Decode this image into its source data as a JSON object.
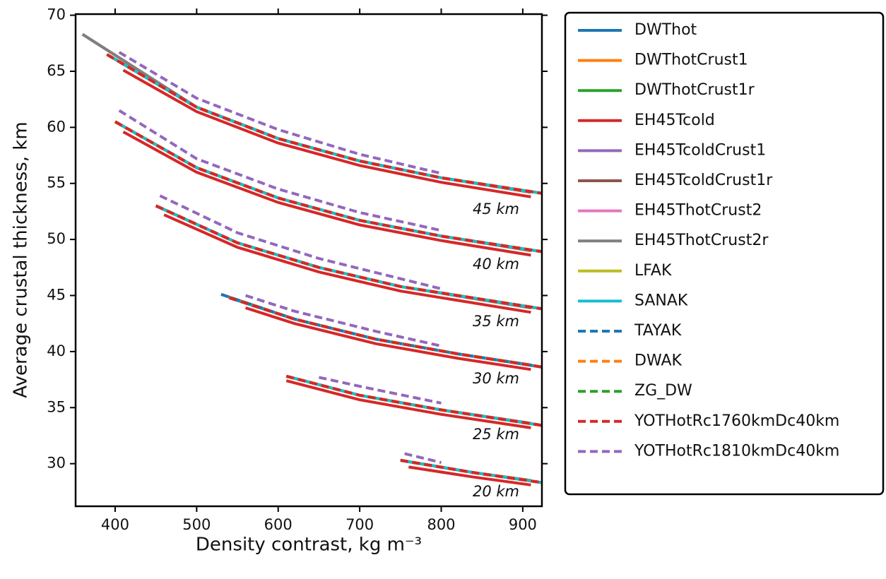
{
  "chart_data": {
    "type": "line",
    "xlabel": "Density contrast, kg m⁻³",
    "ylabel": "Average crustal thickness, km",
    "xlim": [
      351.5,
      923.5
    ],
    "ylim": [
      26.2,
      70.1
    ],
    "xticks": [
      400,
      500,
      600,
      700,
      800,
      900
    ],
    "yticks": [
      30,
      35,
      40,
      45,
      50,
      55,
      60,
      65,
      70
    ],
    "annotations": [
      "45 km",
      "40 km",
      "35 km",
      "30 km",
      "25 km",
      "20 km"
    ],
    "series": [
      {
        "name": "DWThot",
        "color": "#1f77b4",
        "style": "solid",
        "x": [
          390,
          500,
          600,
          700,
          800,
          925,
          null,
          400,
          500,
          600,
          700,
          800,
          925,
          null,
          450,
          550,
          650,
          750,
          925,
          null,
          540,
          620,
          720,
          820,
          925,
          null,
          610,
          700,
          800,
          925,
          null,
          750,
          840,
          925
        ],
        "values": [
          66.5,
          61.8,
          59,
          57,
          55.5,
          54.1,
          null,
          60.5,
          56.4,
          53.7,
          51.7,
          50.3,
          48.9,
          null,
          53,
          49.7,
          47.5,
          45.8,
          43.8,
          null,
          44.8,
          42.9,
          41.1,
          39.8,
          38.6,
          null,
          37.8,
          36.1,
          34.8,
          33.4,
          null,
          30.3,
          29.2,
          28.3
        ]
      },
      {
        "name": "DWThotCrust1",
        "color": "#ff7f0e",
        "style": "solid",
        "x": [
          390,
          500,
          600,
          700,
          800,
          925,
          null,
          400,
          500,
          600,
          700,
          800,
          925,
          null,
          450,
          550,
          650,
          750,
          925,
          null,
          540,
          620,
          720,
          820,
          925,
          null,
          610,
          700,
          800,
          925,
          null,
          750,
          840,
          925
        ],
        "values": [
          66.5,
          61.8,
          59,
          57,
          55.5,
          54.1,
          null,
          60.5,
          56.4,
          53.7,
          51.7,
          50.3,
          48.9,
          null,
          53,
          49.7,
          47.5,
          45.8,
          43.8,
          null,
          44.8,
          42.9,
          41.1,
          39.8,
          38.6,
          null,
          37.8,
          36.1,
          34.8,
          33.4,
          null,
          30.3,
          29.2,
          28.3
        ]
      },
      {
        "name": "DWThotCrust1r",
        "color": "#2ca02c",
        "style": "solid",
        "x": [
          390,
          500,
          600,
          700,
          800,
          925,
          null,
          400,
          500,
          600,
          700,
          800,
          925,
          null,
          450,
          550,
          650,
          750,
          925,
          null,
          540,
          620,
          720,
          820,
          925,
          null,
          610,
          700,
          800,
          925,
          null,
          750,
          840,
          925
        ],
        "values": [
          66.5,
          61.8,
          59,
          57,
          55.5,
          54.1,
          null,
          60.5,
          56.4,
          53.7,
          51.7,
          50.3,
          48.9,
          null,
          53,
          49.7,
          47.5,
          45.8,
          43.8,
          null,
          44.8,
          42.9,
          41.1,
          39.8,
          38.6,
          null,
          37.8,
          36.1,
          34.8,
          33.4,
          null,
          30.3,
          29.2,
          28.3
        ]
      },
      {
        "name": "EH45Tcold",
        "color": "#d62728",
        "style": "solid",
        "x": [
          410,
          500,
          600,
          700,
          800,
          910,
          null,
          410,
          500,
          600,
          700,
          800,
          910,
          null,
          460,
          550,
          650,
          750,
          910,
          null,
          560,
          620,
          720,
          820,
          910,
          null,
          610,
          700,
          800,
          910,
          null,
          760,
          840,
          910
        ],
        "values": [
          65.1,
          61.4,
          58.6,
          56.6,
          55.1,
          53.8,
          null,
          59.6,
          56,
          53.3,
          51.3,
          49.9,
          48.6,
          null,
          52.2,
          49.3,
          47.1,
          45.4,
          43.5,
          null,
          43.9,
          42.5,
          40.7,
          39.4,
          38.4,
          null,
          37.4,
          35.7,
          34.4,
          33.2,
          null,
          29.7,
          28.8,
          28.1
        ]
      },
      {
        "name": "EH45TcoldCrust1",
        "color": "#9467bd",
        "style": "solid",
        "x": [
          390,
          500,
          600,
          700,
          800,
          925,
          null,
          400,
          500,
          600,
          700,
          800,
          925,
          null,
          450,
          550,
          650,
          750,
          925,
          null,
          540,
          620,
          720,
          820,
          925,
          null,
          610,
          700,
          800,
          925,
          null,
          750,
          840,
          925
        ],
        "values": [
          66.5,
          61.8,
          59,
          57,
          55.5,
          54.1,
          null,
          60.5,
          56.4,
          53.7,
          51.7,
          50.3,
          48.9,
          null,
          53,
          49.7,
          47.5,
          45.8,
          43.8,
          null,
          44.8,
          42.9,
          41.1,
          39.8,
          38.6,
          null,
          37.8,
          36.1,
          34.8,
          33.4,
          null,
          30.3,
          29.2,
          28.3
        ]
      },
      {
        "name": "EH45TcoldCrust1r",
        "color": "#8c564b",
        "style": "solid",
        "x": [
          360,
          500,
          600,
          700,
          800,
          910,
          null,
          400,
          500,
          600,
          700,
          800,
          910,
          null,
          450,
          550,
          650,
          750,
          910,
          null,
          530,
          620,
          720,
          820,
          910,
          null,
          610,
          700,
          800,
          910,
          null,
          750,
          840,
          910
        ],
        "values": [
          68.3,
          61.8,
          59,
          57,
          55.5,
          54.2,
          null,
          60.5,
          56.4,
          53.7,
          51.7,
          50.3,
          49,
          null,
          53,
          49.7,
          47.5,
          45.8,
          43.9,
          null,
          45.1,
          42.9,
          41.1,
          39.8,
          38.8,
          null,
          37.8,
          36.1,
          34.8,
          33.6,
          null,
          30.3,
          29.2,
          28.5
        ]
      },
      {
        "name": "EH45ThotCrust2",
        "color": "#e377c2",
        "style": "solid",
        "x": [
          390,
          500,
          600,
          700,
          800,
          925,
          null,
          400,
          500,
          600,
          700,
          800,
          925,
          null,
          450,
          550,
          650,
          750,
          925,
          null,
          540,
          620,
          720,
          820,
          925,
          null,
          610,
          700,
          800,
          925,
          null,
          750,
          840,
          925
        ],
        "values": [
          66.5,
          61.8,
          59,
          57,
          55.5,
          54.1,
          null,
          60.5,
          56.4,
          53.7,
          51.7,
          50.3,
          48.9,
          null,
          53,
          49.7,
          47.5,
          45.8,
          43.8,
          null,
          44.8,
          42.9,
          41.1,
          39.8,
          38.6,
          null,
          37.8,
          36.1,
          34.8,
          33.4,
          null,
          30.3,
          29.2,
          28.3
        ]
      },
      {
        "name": "EH45ThotCrust2r",
        "color": "#7f7f7f",
        "style": "solid",
        "x": [
          360,
          500,
          600,
          700,
          800,
          910,
          null,
          400,
          500,
          600,
          700,
          800,
          910,
          null,
          450,
          550,
          650,
          750,
          910,
          null,
          530,
          620,
          720,
          820,
          910,
          null,
          610,
          700,
          800,
          910,
          null,
          750,
          840,
          910
        ],
        "values": [
          68.3,
          61.8,
          59,
          57,
          55.5,
          54.2,
          null,
          60.5,
          56.4,
          53.7,
          51.7,
          50.3,
          49,
          null,
          53,
          49.7,
          47.5,
          45.8,
          43.9,
          null,
          45.1,
          42.9,
          41.1,
          39.8,
          38.8,
          null,
          37.8,
          36.1,
          34.8,
          33.6,
          null,
          30.3,
          29.2,
          28.5
        ]
      },
      {
        "name": "LFAK",
        "color": "#bcbd22",
        "style": "solid",
        "x": [
          390,
          500,
          600,
          700,
          800,
          925,
          null,
          400,
          500,
          600,
          700,
          800,
          925,
          null,
          450,
          550,
          650,
          750,
          925,
          null,
          540,
          620,
          720,
          820,
          925,
          null,
          610,
          700,
          800,
          925,
          null,
          750,
          840,
          925
        ],
        "values": [
          66.5,
          61.8,
          59,
          57,
          55.5,
          54.1,
          null,
          60.5,
          56.4,
          53.7,
          51.7,
          50.3,
          48.9,
          null,
          53,
          49.7,
          47.5,
          45.8,
          43.8,
          null,
          44.8,
          42.9,
          41.1,
          39.8,
          38.6,
          null,
          37.8,
          36.1,
          34.8,
          33.4,
          null,
          30.3,
          29.2,
          28.3
        ]
      },
      {
        "name": "SANAK",
        "color": "#17becf",
        "style": "solid",
        "x": [
          390,
          500,
          600,
          700,
          800,
          925,
          null,
          400,
          500,
          600,
          700,
          800,
          925,
          null,
          450,
          550,
          650,
          750,
          925,
          null,
          540,
          620,
          720,
          820,
          925,
          null,
          610,
          700,
          800,
          925,
          null,
          750,
          840,
          925
        ],
        "values": [
          66.5,
          61.8,
          59,
          57,
          55.5,
          54.1,
          null,
          60.5,
          56.4,
          53.7,
          51.7,
          50.3,
          48.9,
          null,
          53,
          49.7,
          47.5,
          45.8,
          43.8,
          null,
          44.8,
          42.9,
          41.1,
          39.8,
          38.6,
          null,
          37.8,
          36.1,
          34.8,
          33.4,
          null,
          30.3,
          29.2,
          28.3
        ]
      },
      {
        "name": "TAYAK",
        "color": "#1f77b4",
        "style": "dashed",
        "x": [
          390,
          500,
          600,
          700,
          800,
          925,
          null,
          400,
          500,
          600,
          700,
          800,
          925,
          null,
          450,
          550,
          650,
          750,
          925,
          null,
          530,
          620,
          720,
          820,
          925,
          null,
          610,
          700,
          800,
          925,
          null,
          750,
          840,
          925
        ],
        "values": [
          66.5,
          61.8,
          59,
          57,
          55.5,
          54.1,
          null,
          60.5,
          56.4,
          53.7,
          51.7,
          50.3,
          48.9,
          null,
          53,
          49.7,
          47.5,
          45.8,
          43.8,
          null,
          45.1,
          42.9,
          41.1,
          39.8,
          38.6,
          null,
          37.8,
          36.1,
          34.8,
          33.4,
          null,
          30.3,
          29.2,
          28.3
        ]
      },
      {
        "name": "DWAK",
        "color": "#ff7f0e",
        "style": "dashed",
        "x": [
          390,
          500,
          600,
          700,
          800,
          925,
          null,
          400,
          500,
          600,
          700,
          800,
          925,
          null,
          450,
          550,
          650,
          750,
          925,
          null,
          540,
          620,
          720,
          820,
          925,
          null,
          610,
          700,
          800,
          925,
          null,
          750,
          840,
          925
        ],
        "values": [
          66.5,
          61.8,
          59,
          57,
          55.5,
          54.1,
          null,
          60.5,
          56.4,
          53.7,
          51.7,
          50.3,
          48.9,
          null,
          53,
          49.7,
          47.5,
          45.8,
          43.8,
          null,
          44.8,
          42.9,
          41.1,
          39.8,
          38.6,
          null,
          37.8,
          36.1,
          34.8,
          33.4,
          null,
          30.3,
          29.2,
          28.3
        ]
      },
      {
        "name": "ZG_DW",
        "color": "#2ca02c",
        "style": "dashed",
        "x": [
          390,
          500,
          600,
          700,
          800,
          925,
          null,
          400,
          500,
          600,
          700,
          800,
          925,
          null,
          450,
          550,
          650,
          750,
          925,
          null,
          540,
          620,
          720,
          820,
          925,
          null,
          610,
          700,
          800,
          925,
          null,
          750,
          840,
          925
        ],
        "values": [
          66.5,
          61.8,
          59,
          57,
          55.5,
          54.1,
          null,
          60.5,
          56.4,
          53.7,
          51.7,
          50.3,
          48.9,
          null,
          53,
          49.7,
          47.5,
          45.8,
          43.8,
          null,
          44.8,
          42.9,
          41.1,
          39.8,
          38.6,
          null,
          37.8,
          36.1,
          34.8,
          33.4,
          null,
          30.3,
          29.2,
          28.3
        ]
      },
      {
        "name": "YOTHotRc1760kmDc40km",
        "color": "#d62728",
        "style": "dashed",
        "x": [
          390,
          500,
          600,
          700,
          800,
          925,
          null,
          400,
          500,
          600,
          700,
          800,
          925,
          null,
          450,
          550,
          650,
          750,
          925,
          null,
          540,
          620,
          720,
          820,
          925,
          null,
          610,
          700,
          800,
          925,
          null,
          750,
          840,
          925
        ],
        "values": [
          66.5,
          61.8,
          59,
          57,
          55.5,
          54.1,
          null,
          60.5,
          56.4,
          53.7,
          51.7,
          50.3,
          48.9,
          null,
          53,
          49.7,
          47.5,
          45.8,
          43.8,
          null,
          44.8,
          42.9,
          41.1,
          39.8,
          38.6,
          null,
          37.8,
          36.1,
          34.8,
          33.4,
          null,
          30.3,
          29.2,
          28.3
        ]
      },
      {
        "name": "YOTHotRc1810kmDc40km",
        "color": "#9467bd",
        "style": "dashed",
        "x": [
          405,
          500,
          600,
          700,
          800,
          null,
          405,
          500,
          600,
          700,
          800,
          null,
          455,
          550,
          650,
          750,
          800,
          null,
          560,
          620,
          720,
          800,
          null,
          650,
          700,
          800,
          null,
          755,
          800
        ],
        "values": [
          66.7,
          62.6,
          59.8,
          57.6,
          55.9,
          null,
          61.5,
          57.2,
          54.5,
          52.4,
          50.8,
          null,
          53.9,
          50.6,
          48.3,
          46.5,
          45.6,
          null,
          45,
          43.6,
          41.8,
          40.5,
          null,
          37.7,
          36.9,
          35.4,
          null,
          30.9,
          30.1
        ]
      }
    ]
  }
}
